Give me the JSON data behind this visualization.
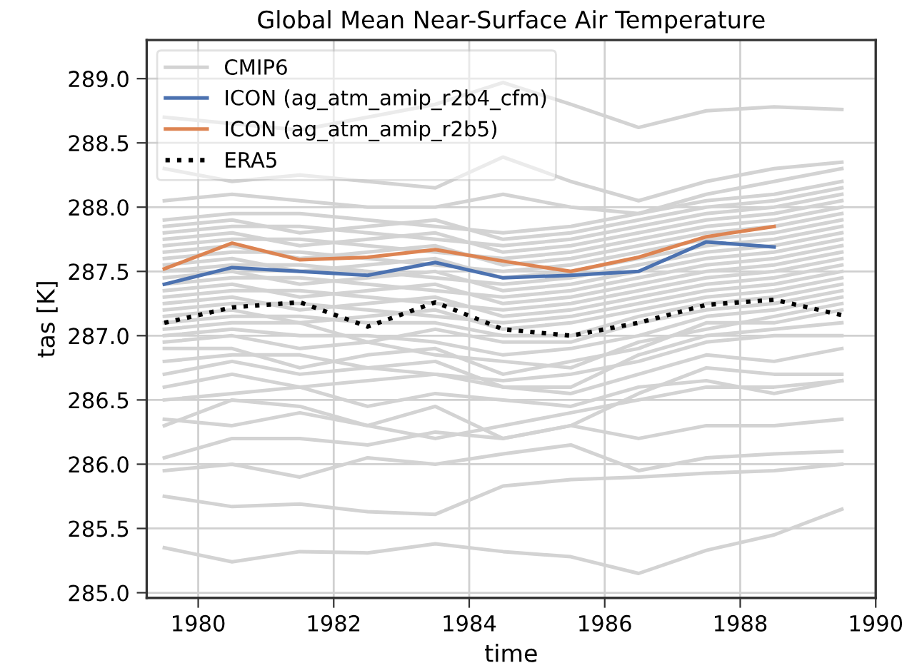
{
  "chart_data": {
    "type": "line",
    "title": "Global Mean Near-Surface Air Temperature",
    "xlabel": "time",
    "ylabel": "tas [K]",
    "x": [
      1979.5,
      1980.5,
      1981.5,
      1982.5,
      1983.5,
      1984.5,
      1985.5,
      1986.5,
      1987.5,
      1988.5,
      1989.5
    ],
    "xlim": [
      1979.24,
      1990
    ],
    "xticks": [
      1980,
      1982,
      1984,
      1986,
      1988,
      1990
    ],
    "ylim": [
      284.96,
      289.3
    ],
    "yticks": [
      {
        "value": 285,
        "label": "285.0"
      },
      {
        "value": 285.5,
        "label": "285.5"
      },
      {
        "value": 286,
        "label": "286.0"
      },
      {
        "value": 286.5,
        "label": "286.5"
      },
      {
        "value": 287,
        "label": "287.0"
      },
      {
        "value": 287.5,
        "label": "287.5"
      },
      {
        "value": 288,
        "label": "288.0"
      },
      {
        "value": 288.5,
        "label": "288.5"
      },
      {
        "value": 289,
        "label": "289.0"
      }
    ],
    "grid": true,
    "legend": "top left",
    "marker": "none",
    "series": [
      {
        "name": "CMIP6",
        "color": "#d3d3d3",
        "values": [
          285.35,
          285.24,
          285.32,
          285.31,
          285.38,
          285.32,
          285.28,
          285.15,
          285.33,
          285.45,
          285.65
        ]
      },
      {
        "color": "#d3d3d3",
        "values": [
          285.75,
          285.67,
          285.69,
          285.63,
          285.61,
          285.83,
          285.88,
          285.9,
          285.93,
          285.95,
          286.0
        ]
      },
      {
        "color": "#d3d3d3",
        "values": [
          285.95,
          286.0,
          285.9,
          286.05,
          286.0,
          286.08,
          286.15,
          285.95,
          286.05,
          286.08,
          286.1
        ]
      },
      {
        "color": "#d3d3d3",
        "values": [
          286.05,
          286.2,
          286.2,
          286.15,
          286.25,
          286.2,
          286.3,
          286.2,
          286.3,
          286.3,
          286.35
        ]
      },
      {
        "color": "#d3d3d3",
        "values": [
          286.35,
          286.3,
          286.4,
          286.3,
          286.2,
          286.3,
          286.4,
          286.5,
          286.6,
          286.6,
          286.65
        ]
      },
      {
        "color": "#d3d3d3",
        "values": [
          286.3,
          286.5,
          286.45,
          286.3,
          286.45,
          286.2,
          286.3,
          286.55,
          286.75,
          286.7,
          286.7
        ]
      },
      {
        "color": "#d3d3d3",
        "values": [
          286.5,
          286.55,
          286.6,
          286.45,
          286.55,
          286.5,
          286.45,
          286.6,
          286.65,
          286.55,
          286.65
        ]
      },
      {
        "color": "#d3d3d3",
        "values": [
          286.6,
          286.7,
          286.6,
          286.65,
          286.7,
          286.6,
          286.55,
          286.7,
          286.85,
          286.8,
          286.9
        ]
      },
      {
        "color": "#d3d3d3",
        "values": [
          286.7,
          286.8,
          286.7,
          286.75,
          286.7,
          286.65,
          286.7,
          286.8,
          286.95,
          287.0,
          287.0
        ]
      },
      {
        "color": "#d3d3d3",
        "values": [
          286.8,
          286.85,
          286.85,
          286.75,
          286.8,
          286.6,
          286.6,
          286.85,
          287.0,
          287.05,
          287.1
        ]
      },
      {
        "color": "#d3d3d3",
        "values": [
          286.9,
          286.9,
          286.75,
          286.85,
          286.9,
          286.7,
          286.8,
          286.9,
          287.1,
          287.1,
          287.2
        ]
      },
      {
        "color": "#d3d3d3",
        "values": [
          286.95,
          287.0,
          286.9,
          286.95,
          286.85,
          286.8,
          286.75,
          286.95,
          287.05,
          287.15,
          287.25
        ]
      },
      {
        "color": "#d3d3d3",
        "values": [
          287.0,
          287.05,
          287.0,
          287.0,
          286.95,
          286.85,
          286.9,
          287.0,
          287.15,
          287.2,
          287.3
        ]
      },
      {
        "color": "#d3d3d3",
        "values": [
          287.05,
          287.1,
          287.1,
          286.95,
          287.05,
          286.95,
          286.95,
          287.1,
          287.2,
          287.25,
          287.35
        ]
      },
      {
        "color": "#d3d3d3",
        "values": [
          287.1,
          287.15,
          287.15,
          287.1,
          287.1,
          287.0,
          287.0,
          287.15,
          287.25,
          287.3,
          287.4
        ]
      },
      {
        "color": "#d3d3d3",
        "values": [
          287.15,
          287.2,
          287.1,
          287.15,
          287.2,
          287.05,
          287.1,
          287.2,
          287.3,
          287.35,
          287.45
        ]
      },
      {
        "color": "#d3d3d3",
        "values": [
          287.2,
          287.25,
          287.25,
          287.2,
          287.15,
          287.1,
          287.15,
          287.25,
          287.35,
          287.4,
          287.5
        ]
      },
      {
        "color": "#d3d3d3",
        "values": [
          287.25,
          287.3,
          287.2,
          287.25,
          287.3,
          287.15,
          287.2,
          287.3,
          287.4,
          287.45,
          287.55
        ]
      },
      {
        "color": "#d3d3d3",
        "values": [
          287.3,
          287.35,
          287.35,
          287.3,
          287.25,
          287.2,
          287.25,
          287.35,
          287.45,
          287.5,
          287.6
        ]
      },
      {
        "color": "#d3d3d3",
        "values": [
          287.35,
          287.4,
          287.3,
          287.35,
          287.4,
          287.25,
          287.3,
          287.4,
          287.5,
          287.55,
          287.65
        ]
      },
      {
        "color": "#d3d3d3",
        "values": [
          287.4,
          287.45,
          287.45,
          287.4,
          287.35,
          287.3,
          287.35,
          287.45,
          287.55,
          287.6,
          287.7
        ]
      },
      {
        "color": "#d3d3d3",
        "values": [
          287.45,
          287.5,
          287.4,
          287.45,
          287.5,
          287.35,
          287.4,
          287.5,
          287.6,
          287.65,
          287.75
        ]
      },
      {
        "color": "#d3d3d3",
        "values": [
          287.5,
          287.55,
          287.55,
          287.5,
          287.45,
          287.4,
          287.45,
          287.55,
          287.65,
          287.7,
          287.8
        ]
      },
      {
        "color": "#d3d3d3",
        "values": [
          287.55,
          287.6,
          287.5,
          287.55,
          287.6,
          287.45,
          287.5,
          287.6,
          287.7,
          287.75,
          287.85
        ]
      },
      {
        "color": "#d3d3d3",
        "values": [
          287.6,
          287.65,
          287.65,
          287.6,
          287.55,
          287.5,
          287.55,
          287.65,
          287.75,
          287.8,
          287.9
        ]
      },
      {
        "color": "#d3d3d3",
        "values": [
          287.65,
          287.7,
          287.6,
          287.65,
          287.7,
          287.55,
          287.6,
          287.7,
          287.8,
          287.85,
          287.95
        ]
      },
      {
        "color": "#d3d3d3",
        "values": [
          287.7,
          287.75,
          287.75,
          287.7,
          287.65,
          287.6,
          287.65,
          287.75,
          287.85,
          287.9,
          288.0
        ]
      },
      {
        "color": "#d3d3d3",
        "values": [
          287.75,
          287.8,
          287.7,
          287.75,
          287.8,
          287.65,
          287.7,
          287.8,
          287.9,
          287.95,
          288.05
        ]
      },
      {
        "color": "#d3d3d3",
        "values": [
          287.8,
          287.85,
          287.85,
          287.8,
          287.75,
          287.7,
          287.75,
          287.85,
          287.95,
          288.0,
          288.1
        ]
      },
      {
        "color": "#d3d3d3",
        "values": [
          287.85,
          287.9,
          287.8,
          287.85,
          287.9,
          287.75,
          287.8,
          287.9,
          288.0,
          288.05,
          288.15
        ]
      },
      {
        "color": "#d3d3d3",
        "values": [
          287.9,
          287.95,
          287.95,
          287.9,
          287.85,
          287.8,
          287.85,
          287.95,
          288.05,
          288.1,
          288.2
        ]
      },
      {
        "color": "#d3d3d3",
        "values": [
          288.05,
          288.1,
          288.05,
          288.0,
          288.0,
          288.1,
          288.0,
          287.95,
          288.1,
          288.2,
          288.3
        ]
      },
      {
        "color": "#d3d3d3",
        "values": [
          288.3,
          288.2,
          288.25,
          288.2,
          288.15,
          288.39,
          288.2,
          288.05,
          288.2,
          288.3,
          288.35
        ]
      },
      {
        "color": "#d3d3d3",
        "values": [
          288.7,
          288.65,
          288.6,
          288.7,
          288.8,
          288.97,
          288.8,
          288.62,
          288.75,
          288.78,
          288.76
        ]
      },
      {
        "name": "ICON (ag_atm_amip_r2b4_cfm)",
        "color": "#4c72b0",
        "x": [
          1979.5,
          1980.5,
          1981.5,
          1982.5,
          1983.5,
          1984.5,
          1985.5,
          1986.5,
          1987.5,
          1988.5
        ],
        "values": [
          287.4,
          287.53,
          287.5,
          287.47,
          287.57,
          287.45,
          287.47,
          287.5,
          287.73,
          287.69
        ]
      },
      {
        "name": "ICON (ag_atm_amip_r2b5)",
        "color": "#dd8452",
        "x": [
          1979.5,
          1980.5,
          1981.5,
          1982.5,
          1983.5,
          1984.5,
          1985.5,
          1986.5,
          1987.5,
          1988.5
        ],
        "values": [
          287.52,
          287.72,
          287.59,
          287.61,
          287.67,
          287.58,
          287.5,
          287.61,
          287.77,
          287.85
        ]
      },
      {
        "name": "ERA5",
        "color": "#000000",
        "line_style": "dotted",
        "values": [
          287.1,
          287.22,
          287.26,
          287.07,
          287.26,
          287.05,
          287.0,
          287.1,
          287.24,
          287.28,
          287.16
        ]
      }
    ]
  }
}
